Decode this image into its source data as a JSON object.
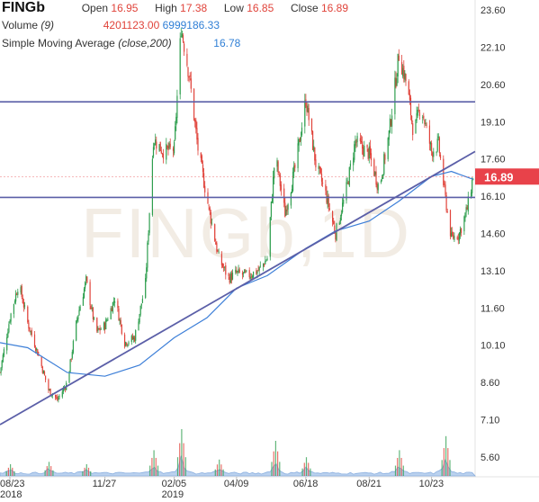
{
  "header": {
    "symbol": "FINGb",
    "open_label": "Open",
    "open_value": "16.95",
    "high_label": "High",
    "high_value": "17.38",
    "low_label": "Low",
    "low_value": "16.85",
    "close_label": "Close",
    "close_value": "16.89",
    "volume_label": "Volume",
    "volume_period": "(9)",
    "volume_value_1": "4201123.00",
    "volume_value_2": "6999186.33",
    "sma_label": "Simple Moving Average",
    "sma_params": "(close,200)",
    "sma_value": "16.78"
  },
  "watermark": "FINGb,1D",
  "current_price_label": "16.89",
  "colors": {
    "up": "#2e9e4e",
    "down": "#e0433a",
    "sma": "#3d7fd8",
    "trendline": "#5b5fa8",
    "volume_fill": "#a9c6ea",
    "price_box": "#e8424a"
  },
  "chart_data": {
    "type": "candlestick",
    "y_ticks": [
      "23.60",
      "22.10",
      "20.60",
      "19.10",
      "17.60",
      "16.10",
      "14.60",
      "13.10",
      "11.60",
      "10.10",
      "8.60",
      "7.10",
      "5.60"
    ],
    "ylim": [
      4.8,
      24.0
    ],
    "x_ticks": [
      {
        "label": "08/23",
        "sub": "2018",
        "date": "2018-08-23"
      },
      {
        "label": "11/27",
        "sub": "",
        "date": "2018-11-27"
      },
      {
        "label": "02/05",
        "sub": "2019",
        "date": "2019-02-05"
      },
      {
        "label": "04/09",
        "sub": "",
        "date": "2019-04-09"
      },
      {
        "label": "06/18",
        "sub": "",
        "date": "2019-06-18"
      },
      {
        "label": "08/21",
        "sub": "",
        "date": "2019-08-21"
      },
      {
        "label": "10/23",
        "sub": "",
        "date": "2019-10-23"
      }
    ],
    "xlim": [
      "2018-08-13",
      "2019-12-06"
    ],
    "close_series": [
      [
        "2018-08-13",
        9.0
      ],
      [
        "2018-08-23",
        11.2
      ],
      [
        "2018-09-01",
        12.6
      ],
      [
        "2018-09-10",
        11.0
      ],
      [
        "2018-09-20",
        9.8
      ],
      [
        "2018-10-01",
        8.3
      ],
      [
        "2018-10-10",
        7.9
      ],
      [
        "2018-10-20",
        8.6
      ],
      [
        "2018-10-30",
        11.2
      ],
      [
        "2018-11-08",
        12.7
      ],
      [
        "2018-11-18",
        10.6
      ],
      [
        "2018-11-27",
        10.9
      ],
      [
        "2018-12-07",
        12.0
      ],
      [
        "2018-12-17",
        10.2
      ],
      [
        "2018-12-27",
        10.4
      ],
      [
        "2019-01-07",
        12.6
      ],
      [
        "2019-01-15",
        18.4
      ],
      [
        "2019-01-25",
        17.9
      ],
      [
        "2019-02-05",
        18.0
      ],
      [
        "2019-02-12",
        22.9
      ],
      [
        "2019-02-20",
        21.0
      ],
      [
        "2019-03-01",
        18.0
      ],
      [
        "2019-03-12",
        15.6
      ],
      [
        "2019-03-22",
        13.6
      ],
      [
        "2019-04-01",
        12.8
      ],
      [
        "2019-04-09",
        13.0
      ],
      [
        "2019-04-20",
        12.9
      ],
      [
        "2019-05-01",
        13.1
      ],
      [
        "2019-05-10",
        13.6
      ],
      [
        "2019-05-18",
        17.8
      ],
      [
        "2019-05-28",
        15.4
      ],
      [
        "2019-06-08",
        17.4
      ],
      [
        "2019-06-18",
        20.0
      ],
      [
        "2019-06-28",
        17.4
      ],
      [
        "2019-07-08",
        16.2
      ],
      [
        "2019-07-18",
        14.6
      ],
      [
        "2019-07-28",
        16.2
      ],
      [
        "2019-08-07",
        18.3
      ],
      [
        "2019-08-21",
        17.8
      ],
      [
        "2019-08-31",
        16.4
      ],
      [
        "2019-09-10",
        18.6
      ],
      [
        "2019-09-20",
        21.8
      ],
      [
        "2019-09-28",
        20.6
      ],
      [
        "2019-10-05",
        18.6
      ],
      [
        "2019-10-12",
        19.8
      ],
      [
        "2019-10-23",
        17.9
      ],
      [
        "2019-10-30",
        18.2
      ],
      [
        "2019-11-06",
        16.0
      ],
      [
        "2019-11-12",
        14.4
      ],
      [
        "2019-11-20",
        14.6
      ],
      [
        "2019-11-28",
        15.6
      ],
      [
        "2019-12-04",
        16.89
      ]
    ],
    "sma_series": [
      [
        "2018-08-13",
        10.2
      ],
      [
        "2018-09-10",
        10.0
      ],
      [
        "2018-10-20",
        9.0
      ],
      [
        "2018-11-27",
        8.85
      ],
      [
        "2019-01-01",
        9.3
      ],
      [
        "2019-02-05",
        10.4
      ],
      [
        "2019-03-10",
        11.2
      ],
      [
        "2019-04-09",
        12.4
      ],
      [
        "2019-05-10",
        12.9
      ],
      [
        "2019-06-18",
        14.0
      ],
      [
        "2019-07-18",
        14.7
      ],
      [
        "2019-08-21",
        15.1
      ],
      [
        "2019-09-20",
        15.9
      ],
      [
        "2019-10-23",
        16.9
      ],
      [
        "2019-11-12",
        17.1
      ],
      [
        "2019-12-04",
        16.78
      ]
    ],
    "horizontal_levels": [
      19.9,
      16.05
    ],
    "trendline": {
      "start": [
        "2018-08-13",
        6.9
      ],
      "end": [
        "2019-12-06",
        17.9
      ]
    },
    "volume_peaks": [
      [
        "2018-08-23",
        0.25
      ],
      [
        "2018-10-01",
        0.3
      ],
      [
        "2018-11-08",
        0.25
      ],
      [
        "2019-01-15",
        0.55
      ],
      [
        "2019-02-12",
        1.0
      ],
      [
        "2019-03-22",
        0.35
      ],
      [
        "2019-05-18",
        0.75
      ],
      [
        "2019-06-18",
        0.4
      ],
      [
        "2019-09-20",
        0.55
      ],
      [
        "2019-11-06",
        0.85
      ]
    ]
  }
}
